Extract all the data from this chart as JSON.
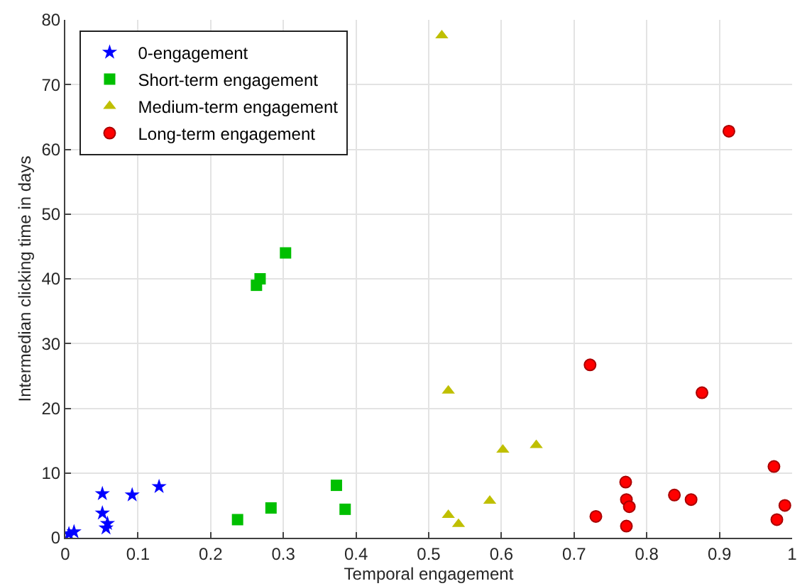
{
  "chart_data": {
    "type": "scatter",
    "xlabel": "Temporal engagement",
    "ylabel": "Intermedian clicking time in days",
    "xlim": [
      0,
      1
    ],
    "xticks": [
      0,
      0.1,
      0.2,
      0.3,
      0.4,
      0.5,
      0.6,
      0.7,
      0.8,
      0.9,
      1
    ],
    "ylim": [
      0,
      80
    ],
    "yticks": [
      0,
      10,
      20,
      30,
      40,
      50,
      60,
      70,
      80
    ],
    "grid": true,
    "legend": "top left",
    "series": [
      {
        "name": "0-engagement",
        "color": "#0000ff",
        "marker": "star",
        "x": [
          0.005,
          0.012,
          0.051,
          0.051,
          0.058,
          0.056,
          0.092,
          0.129
        ],
        "values": [
          0.6,
          0.9,
          6.8,
          3.8,
          2.2,
          1.5,
          6.6,
          7.9
        ]
      },
      {
        "name": "Short-term engagement",
        "color": "#00bf00",
        "marker": "square",
        "x": [
          0.237,
          0.283,
          0.373,
          0.385,
          0.263,
          0.268,
          0.303
        ],
        "values": [
          2.8,
          4.6,
          8.1,
          4.4,
          39,
          40,
          44
        ]
      },
      {
        "name": "Medium-term engagement",
        "color": "#bfbf00",
        "marker": "triangle",
        "x": [
          0.518,
          0.527,
          0.602,
          0.648,
          0.584,
          0.527,
          0.541
        ],
        "values": [
          77.6,
          22.7,
          13.6,
          14.3,
          5.7,
          3.5,
          2.1
        ]
      },
      {
        "name": "Long-term engagement",
        "color": "#ff0000",
        "marker": "circle",
        "x": [
          0.913,
          0.722,
          0.876,
          0.975,
          0.771,
          0.772,
          0.776,
          0.73,
          0.772,
          0.838,
          0.861,
          0.99,
          0.979
        ],
        "values": [
          62.8,
          26.7,
          22.4,
          11,
          8.6,
          5.9,
          4.8,
          3.3,
          1.8,
          6.6,
          5.9,
          5,
          2.8
        ]
      }
    ]
  }
}
